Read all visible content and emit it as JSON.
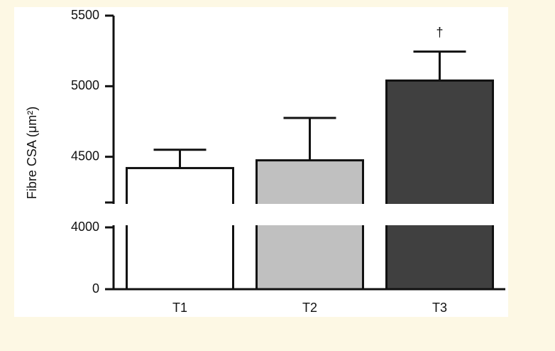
{
  "chart_data": {
    "type": "bar",
    "ylabel": "Fibre CSA (μm²)",
    "categories": [
      "T1",
      "T2",
      "T3"
    ],
    "values": [
      4420,
      4475,
      5040
    ],
    "errors": [
      130,
      300,
      205
    ],
    "colors": [
      "#ffffff",
      "#c0c0c0",
      "#404040"
    ],
    "ylim": [
      0,
      5500
    ],
    "yticks": [
      0,
      4000,
      4500,
      5000,
      5500
    ],
    "y_break": 4000,
    "annotations": [
      {
        "text": "†",
        "category": 2
      }
    ]
  }
}
